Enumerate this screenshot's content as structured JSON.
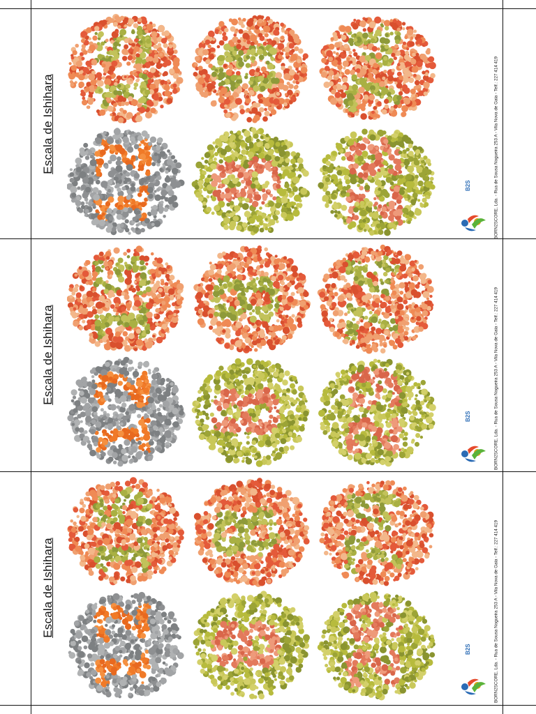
{
  "cards": [
    {
      "title": "Escala de Ishihara",
      "footer": "BORN2SCORE, Lda. - Rua de Sousa Nogueira 253 A - Vila Nova de Gaia - Telf.: 227 414 419",
      "logo_text": "B2S"
    },
    {
      "title": "Escala de Ishihara",
      "footer": "BORN2SCORE, Lda. - Rua de Sousa Nogueira 253 A - Vila Nova de Gaia - Telf.: 227 414 419",
      "logo_text": "B2S"
    },
    {
      "title": "Escala de Ishihara",
      "footer": "BORN2SCORE, Lda. - Rua de Sousa Nogueira 253 A - Vila Nova de Gaia - Telf.: 227 414 419",
      "logo_text": "B2S"
    }
  ],
  "plates": [
    {
      "row": 0,
      "col": 0,
      "numeral": "15",
      "bg": [
        "#e45a3a",
        "#ef8a55",
        "#f0a070",
        "#d9502e",
        "#f3b78a"
      ],
      "fg": [
        "#a9b043",
        "#c2c25a",
        "#8e9a3a"
      ]
    },
    {
      "row": 0,
      "col": 1,
      "numeral": "8",
      "bg": [
        "#e45a3a",
        "#ef8a55",
        "#f0a070",
        "#d9502e",
        "#f3b78a"
      ],
      "fg": [
        "#a9b043",
        "#c2c25a",
        "#8e9a3a"
      ]
    },
    {
      "row": 0,
      "col": 2,
      "numeral": "74",
      "bg": [
        "#e45a3a",
        "#ef8a55",
        "#f0a070",
        "#d9502e",
        "#f3b78a"
      ],
      "fg": [
        "#a9b043",
        "#c2c25a",
        "#8e9a3a"
      ]
    },
    {
      "row": 1,
      "col": 0,
      "numeral": "12",
      "bg": [
        "#8e9092",
        "#a2a4a6",
        "#7d8082",
        "#b0b2b3"
      ],
      "fg": [
        "#f07a28",
        "#e8691f",
        "#f59040"
      ]
    },
    {
      "row": 1,
      "col": 1,
      "numeral": "8",
      "bg": [
        "#b7bb3d",
        "#9ca436",
        "#c9c85a",
        "#8a9430",
        "#d3d06a"
      ],
      "fg": [
        "#e37a5c",
        "#d9664a",
        "#ee9a7a"
      ]
    },
    {
      "row": 1,
      "col": 2,
      "numeral": "29",
      "bg": [
        "#b7bb3d",
        "#9ca436",
        "#c9c85a",
        "#8a9430",
        "#d3d06a"
      ],
      "fg": [
        "#e37a5c",
        "#d9664a",
        "#ee9a7a"
      ]
    }
  ]
}
